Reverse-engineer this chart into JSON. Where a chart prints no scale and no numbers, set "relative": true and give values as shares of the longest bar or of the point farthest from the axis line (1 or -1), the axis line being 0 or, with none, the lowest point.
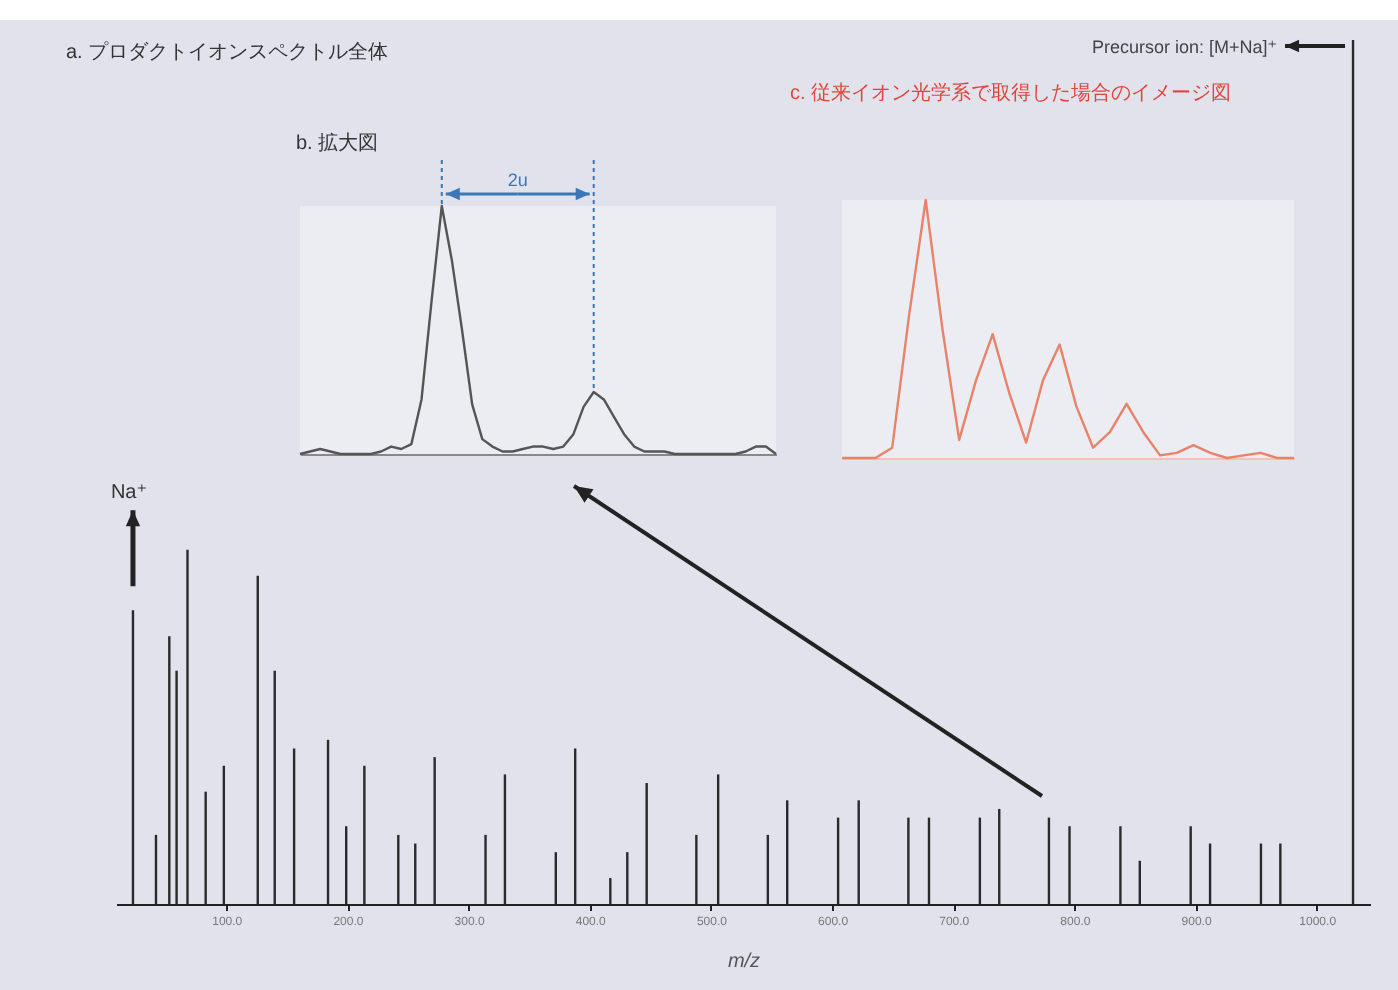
{
  "chart_data": [
    {
      "type": "bar",
      "title": "a. プロダクトイオンスペクトル全体",
      "xlabel": "m/z",
      "relative": true,
      "color": "#2a2a2a",
      "x": [
        23,
        42,
        53,
        59,
        68,
        83,
        98,
        126,
        140,
        156,
        184,
        199,
        214,
        242,
        256,
        272,
        314,
        330,
        372,
        388,
        417,
        431,
        447,
        488,
        506,
        547,
        563,
        605,
        622,
        663,
        680,
        722,
        738,
        779,
        796,
        838,
        854,
        896,
        912,
        954,
        970,
        1030
      ],
      "values": [
        0.34,
        0.08,
        0.31,
        0.27,
        0.41,
        0.13,
        0.16,
        0.38,
        0.27,
        0.18,
        0.19,
        0.09,
        0.16,
        0.08,
        0.07,
        0.17,
        0.08,
        0.15,
        0.06,
        0.18,
        0.03,
        0.06,
        0.14,
        0.08,
        0.15,
        0.08,
        0.12,
        0.1,
        0.12,
        0.1,
        0.1,
        0.1,
        0.11,
        0.1,
        0.09,
        0.09,
        0.05,
        0.09,
        0.07,
        0.07,
        0.07,
        1
      ],
      "xlim": [
        9,
        1044
      ],
      "xticks": [
        {
          "value": 100,
          "label": "100.0"
        },
        {
          "value": 200,
          "label": "200.0"
        },
        {
          "value": 300,
          "label": "300.0"
        },
        {
          "value": 400,
          "label": "400.0"
        },
        {
          "value": 500,
          "label": "500.0"
        },
        {
          "value": 600,
          "label": "600.0"
        },
        {
          "value": 700,
          "label": "700.0"
        },
        {
          "value": 800,
          "label": "800.0"
        },
        {
          "value": 900,
          "label": "900.0"
        },
        {
          "value": 1000,
          "label": "1000.0"
        }
      ],
      "annotations": [
        "Na⁺",
        "Precursor ion: [M+Na]⁺"
      ]
    },
    {
      "type": "line",
      "title": "b. 拡大図",
      "relative": true,
      "color": "#555555",
      "categories": [
        null,
        null,
        null,
        null,
        null,
        null,
        null,
        null,
        null,
        null,
        null,
        null,
        null,
        null,
        null,
        null,
        null,
        null,
        null,
        null,
        null,
        null,
        null,
        null,
        null,
        null,
        null,
        null,
        null,
        null,
        null,
        null,
        null,
        null,
        null,
        null,
        null,
        null,
        null,
        null,
        null,
        null,
        null,
        null,
        null,
        null,
        null,
        null
      ],
      "values": [
        0,
        0.01,
        0.02,
        0.01,
        0,
        0,
        0,
        0,
        0.01,
        0.03,
        0.02,
        0.04,
        0.22,
        0.62,
        1,
        0.78,
        0.5,
        0.2,
        0.06,
        0.03,
        0.01,
        0.01,
        0.02,
        0.03,
        0.03,
        0.02,
        0.03,
        0.08,
        0.19,
        0.25,
        0.22,
        0.15,
        0.08,
        0.03,
        0.01,
        0.01,
        0.01,
        0,
        0,
        0,
        0,
        0,
        0,
        0,
        0.01,
        0.03,
        0.03,
        0
      ],
      "annotations": [
        "2u"
      ]
    },
    {
      "type": "line",
      "title": "c. 従来イオン光学系で取得した場合のイメージ図",
      "relative": true,
      "color": "#e8836a",
      "categories": [
        null,
        null,
        null,
        null,
        null,
        null,
        null,
        null,
        null,
        null,
        null,
        null,
        null,
        null,
        null,
        null,
        null,
        null,
        null,
        null,
        null,
        null,
        null,
        null,
        null,
        null,
        null,
        null
      ],
      "values": [
        0,
        0,
        0,
        0.04,
        0.55,
        1,
        0.5,
        0.07,
        0.3,
        0.48,
        0.25,
        0.06,
        0.3,
        0.44,
        0.2,
        0.04,
        0.1,
        0.21,
        0.1,
        0.01,
        0.02,
        0.05,
        0.02,
        0,
        0.01,
        0.02,
        0,
        0
      ]
    }
  ]
}
